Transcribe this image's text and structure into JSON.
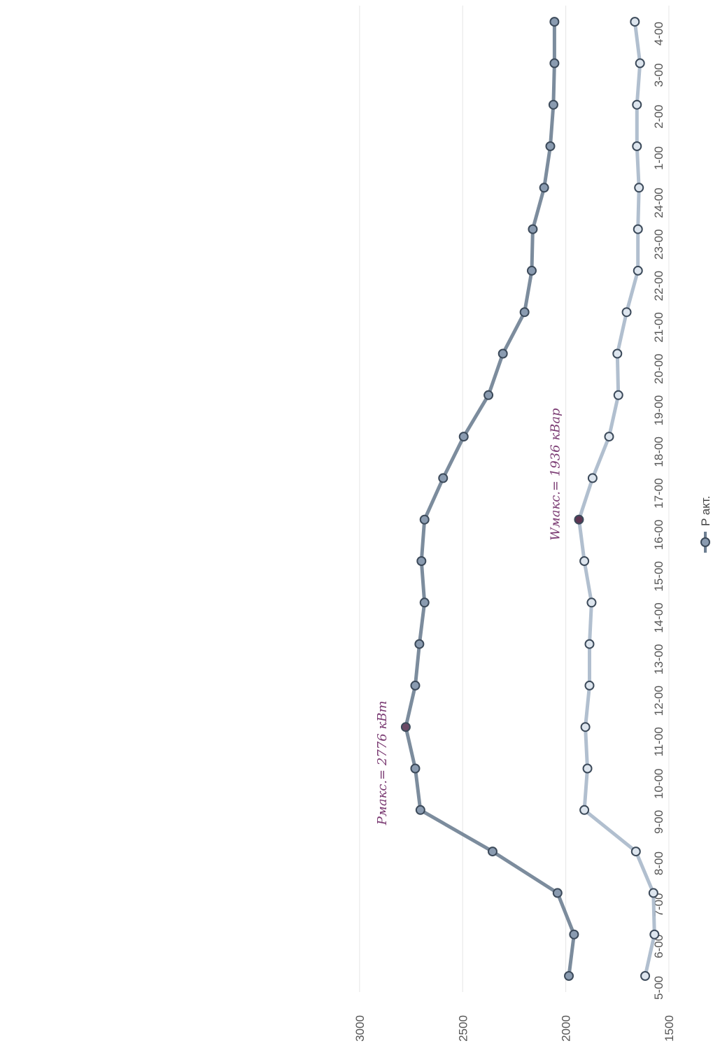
{
  "chart_data": {
    "type": "line",
    "title": "",
    "xlabel": "",
    "ylabel": "",
    "orientation": "rotated-90-clockwise",
    "categories": [
      "5-00",
      "6-00",
      "7-00",
      "8-00",
      "9-00",
      "10-00",
      "11-00",
      "12-00",
      "13-00",
      "14-00",
      "15-00",
      "16-00",
      "17-00",
      "18-00",
      "19-00",
      "20-00",
      "21-00",
      "22-00",
      "23-00",
      "24-00",
      "1-00",
      "2-00",
      "3-00",
      "4-00"
    ],
    "ylim": [
      0,
      3000
    ],
    "yticks": [
      "0",
      "500",
      "1000",
      "1500",
      "2000",
      "2500",
      "3000"
    ],
    "grid": true,
    "legend_position": "bottom",
    "series": [
      {
        "name": "P акт.",
        "color": "#6e7f92",
        "marker_color": "#8a9bb0",
        "values": [
          1985,
          1960,
          2040,
          2355,
          2705,
          2730,
          2776,
          2730,
          2710,
          2685,
          2700,
          2685,
          2595,
          2495,
          2375,
          2305,
          2200,
          2165,
          2160,
          2105,
          2075,
          2060,
          2055,
          2055
        ]
      },
      {
        "name": "",
        "color": "#a9b8ca",
        "marker_color": "#dde5ee",
        "values": [
          1615,
          1570,
          1575,
          1660,
          1910,
          1895,
          1905,
          1885,
          1885,
          1875,
          1910,
          1936,
          1870,
          1790,
          1745,
          1750,
          1705,
          1650,
          1650,
          1645,
          1655,
          1655,
          1640,
          1665
        ]
      }
    ],
    "highlight": [
      {
        "series": 0,
        "index": 6,
        "color": "#6b4a66"
      },
      {
        "series": 1,
        "index": 11,
        "color": "#5c3552"
      }
    ],
    "annotations": [
      {
        "text": "Pмакс.= 2776 кВт",
        "series": 0,
        "index": 6
      },
      {
        "text": "Wмакс.= 1936 кВар",
        "series": 1,
        "index": 11
      }
    ]
  }
}
